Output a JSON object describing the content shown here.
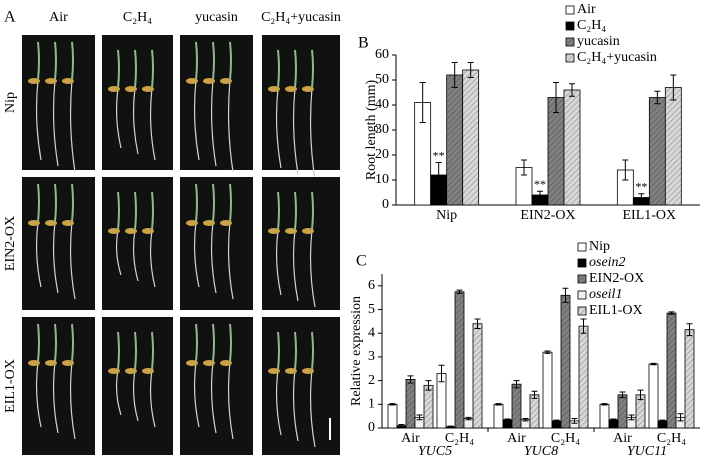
{
  "panel_labels": [
    "A",
    "B",
    "C"
  ],
  "photo_panel": {
    "columns": [
      "Air",
      "C₂H₄",
      "yucasin",
      "C₂H₄+yucasin"
    ],
    "rows": [
      "Nip",
      "EIN2-OX",
      "EIL1-OX"
    ]
  },
  "chart_data": [
    {
      "type": "bar",
      "ylabel": "Root length (mm)",
      "categories": [
        "Nip",
        "EIN2-OX",
        "EIL1-OX"
      ],
      "series": [
        {
          "name": "Air",
          "color": "#ffffff",
          "values": [
            41,
            15,
            14
          ],
          "errors": [
            8,
            3,
            4
          ]
        },
        {
          "name": "C₂H₄",
          "color": "#000000",
          "values": [
            12,
            4,
            3
          ],
          "errors": [
            5,
            1.5,
            1.5
          ],
          "labels": [
            "**",
            "**",
            "**"
          ]
        },
        {
          "name": "yucasin",
          "color": "#808080",
          "hatch": true,
          "values": [
            52,
            43,
            43
          ],
          "errors": [
            5,
            6,
            2.5
          ]
        },
        {
          "name": "C₂H₄+yucasin",
          "color": "#d8d8d8",
          "hatch": true,
          "values": [
            54,
            46,
            47
          ],
          "errors": [
            3,
            2.5,
            5
          ]
        }
      ],
      "ylim": [
        0,
        60
      ],
      "yticks": [
        0,
        10,
        20,
        30,
        40,
        50,
        60
      ],
      "legend": "top-right"
    },
    {
      "type": "bar",
      "ylabel": "Relative expression",
      "categories": [
        "Air",
        "C₂H₄",
        "Air",
        "C₂H₄",
        "Air",
        "C₂H₄"
      ],
      "groups": [
        "YUC5",
        "YUC8",
        "YUC11"
      ],
      "groups_italic": true,
      "series": [
        {
          "name": "Nip",
          "color": "#ffffff",
          "values": [
            1.0,
            2.3,
            1.0,
            3.2,
            1.0,
            2.7
          ],
          "errors": [
            0.03,
            0.35,
            0.03,
            0.05,
            0.03,
            0.03
          ]
        },
        {
          "name": "osein2",
          "italic": true,
          "color": "#000000",
          "values": [
            0.1,
            0.05,
            0.35,
            0.3,
            0.35,
            0.3
          ],
          "errors": [
            0.05,
            0.03,
            0.03,
            0.03,
            0.03,
            0.03
          ]
        },
        {
          "name": "EIN2-OX",
          "color": "#808080",
          "hatch": true,
          "values": [
            2.05,
            5.75,
            1.85,
            5.6,
            1.4,
            4.85
          ],
          "errors": [
            0.15,
            0.07,
            0.15,
            0.3,
            0.12,
            0.05
          ]
        },
        {
          "name": "oseil1",
          "italic": true,
          "color": "#f0f0f0",
          "values": [
            0.45,
            0.4,
            0.35,
            0.3,
            0.45,
            0.45
          ],
          "errors": [
            0.1,
            0.05,
            0.05,
            0.1,
            0.1,
            0.15
          ]
        },
        {
          "name": "EIL1-OX",
          "color": "#d8d8d8",
          "hatch": true,
          "values": [
            1.8,
            4.4,
            1.4,
            4.3,
            1.4,
            4.15
          ],
          "errors": [
            0.2,
            0.2,
            0.15,
            0.3,
            0.2,
            0.25
          ]
        }
      ],
      "ylim": [
        0,
        6.5
      ],
      "yticks": [
        0,
        1,
        2,
        3,
        4,
        5,
        6
      ],
      "legend": "top-right"
    }
  ]
}
